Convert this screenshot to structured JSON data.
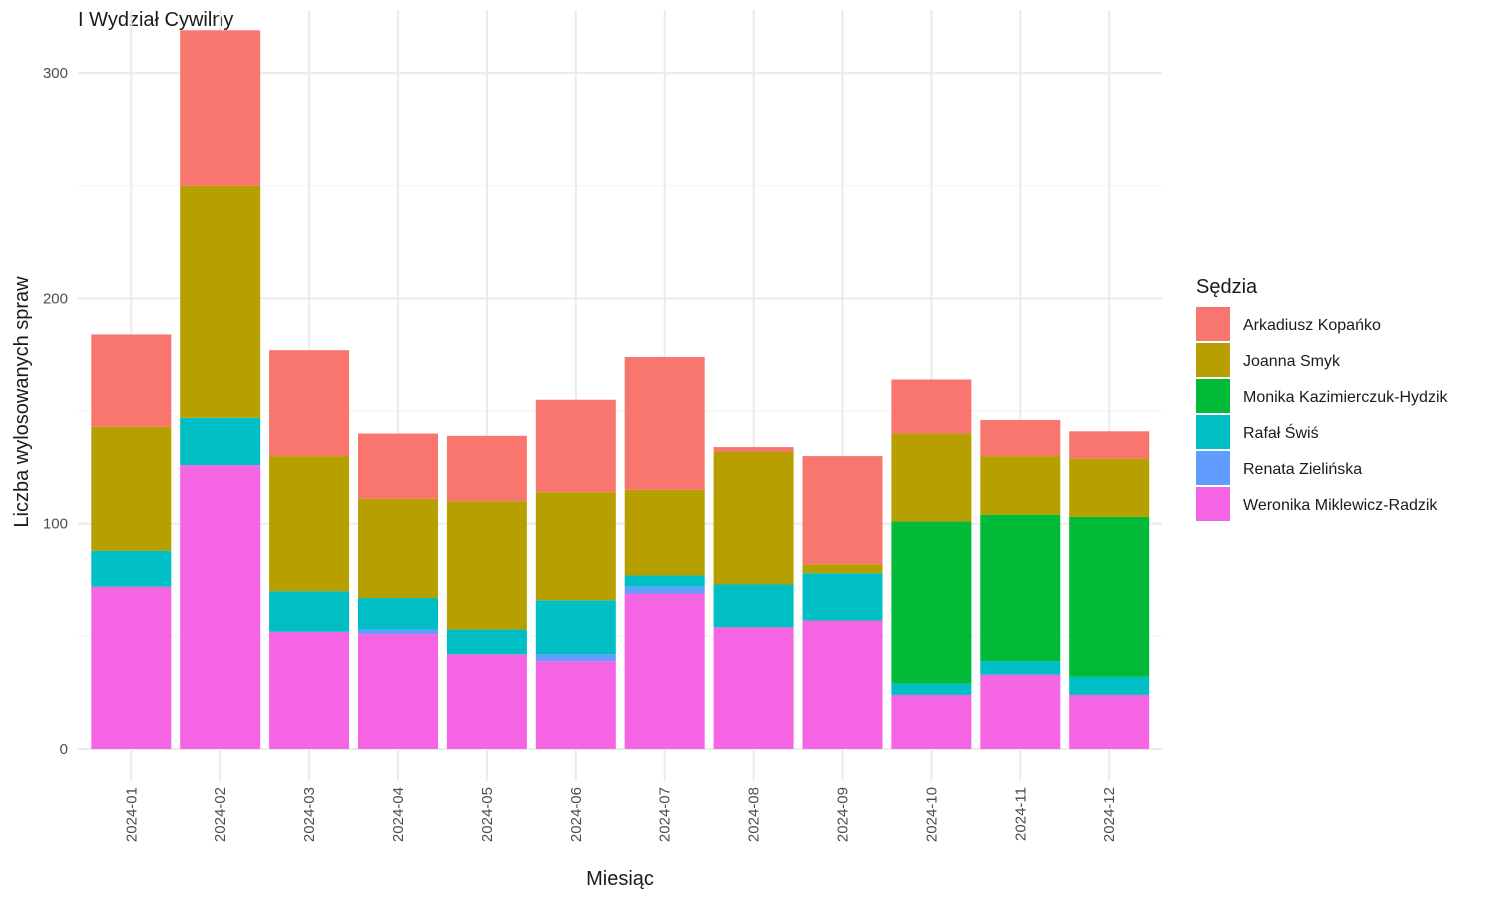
{
  "chart_data": {
    "type": "bar",
    "stacked": true,
    "title": "I Wydział Cywilny",
    "xlabel": "Miesiąc",
    "ylabel": "Liczba wylosowanych spraw",
    "ylim": [
      -12,
      328
    ],
    "yticks": [
      0,
      100,
      200,
      300
    ],
    "grid": true,
    "legend": {
      "title": "Sędzia",
      "position": "right"
    },
    "categories": [
      "2024-01",
      "2024-02",
      "2024-03",
      "2024-04",
      "2024-05",
      "2024-06",
      "2024-07",
      "2024-08",
      "2024-09",
      "2024-10",
      "2024-11",
      "2024-12"
    ],
    "series": [
      {
        "name": "Weronika Miklewicz-Radzik",
        "color": "#F564E3",
        "values": [
          72,
          126,
          52,
          51,
          42,
          39,
          69,
          54,
          57,
          24,
          33,
          24
        ]
      },
      {
        "name": "Renata Zielińska",
        "color": "#619CFF",
        "values": [
          0,
          0,
          0,
          2,
          0,
          3,
          3,
          0,
          0,
          0,
          0,
          0
        ]
      },
      {
        "name": "Rafał Świś",
        "color": "#00BFC4",
        "values": [
          16,
          21,
          18,
          14,
          11,
          24,
          5,
          19,
          21,
          5,
          6,
          8
        ]
      },
      {
        "name": "Monika Kazimierczuk-Hydzik",
        "color": "#00BA38",
        "values": [
          0,
          0,
          0,
          0,
          0,
          0,
          0,
          0,
          0,
          72,
          65,
          71
        ]
      },
      {
        "name": "Joanna Smyk",
        "color": "#B79F00",
        "values": [
          55,
          103,
          60,
          44,
          57,
          48,
          38,
          59,
          4,
          39,
          26,
          26
        ]
      },
      {
        "name": "Arkadiusz Kopańko",
        "color": "#F8766D",
        "values": [
          41,
          69,
          47,
          29,
          29,
          41,
          59,
          2,
          48,
          24,
          16,
          12
        ]
      }
    ],
    "legend_order": [
      "Arkadiusz Kopańko",
      "Joanna Smyk",
      "Monika Kazimierczuk-Hydzik",
      "Rafał Świś",
      "Renata Zielińska",
      "Weronika Miklewicz-Radzik"
    ]
  }
}
